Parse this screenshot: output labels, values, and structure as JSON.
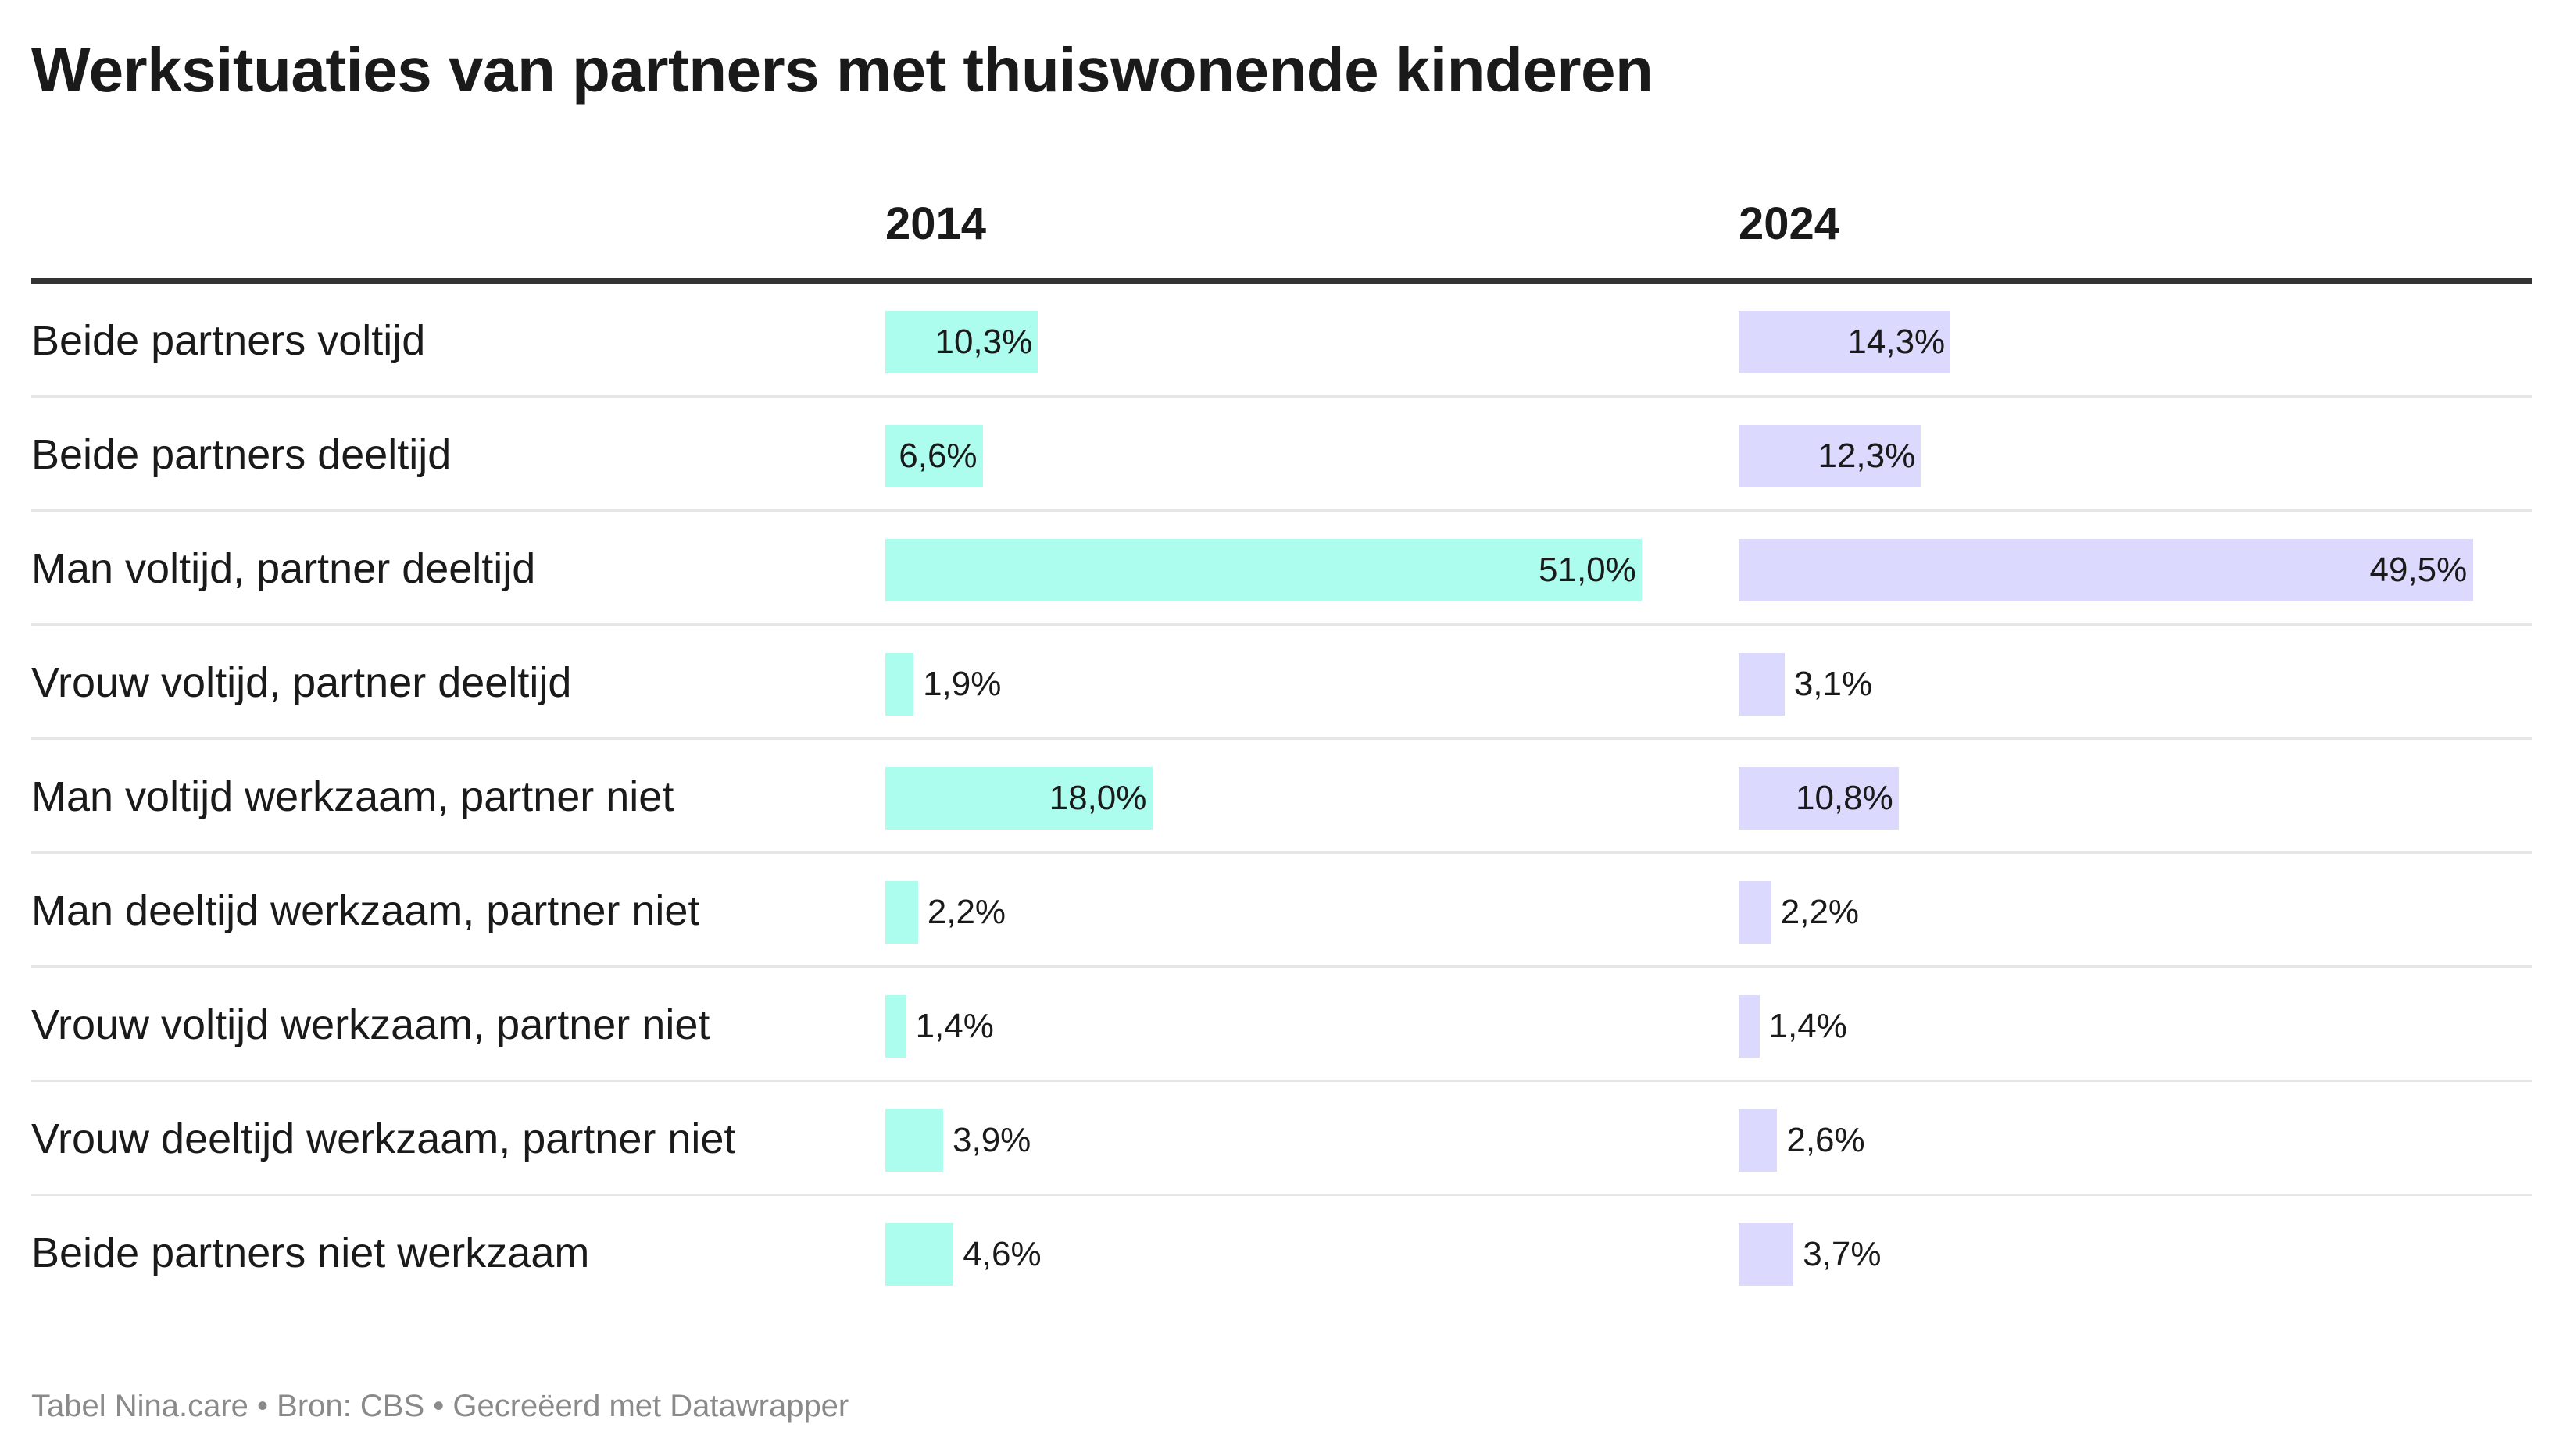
{
  "chart_data": {
    "type": "table",
    "title": "Werksituaties van partners met thuiswonende kinderen",
    "columns": [
      "2014",
      "2024"
    ],
    "categories": [
      "Beide partners voltijd",
      "Beide partners deeltijd",
      "Man voltijd, partner deeltijd",
      "Vrouw voltijd, partner deeltijd",
      "Man voltijd werkzaam, partner niet",
      "Man deeltijd werkzaam, partner niet",
      "Vrouw voltijd werkzaam, partner niet",
      "Vrouw deeltijd werkzaam, partner niet",
      "Beide partners niet werkzaam"
    ],
    "series": [
      {
        "name": "2014",
        "color": "#adfdef",
        "values": [
          10.3,
          6.6,
          51.0,
          1.9,
          18.0,
          2.2,
          1.4,
          3.9,
          4.6
        ],
        "labels": [
          "10,3%",
          "6,6%",
          "51,0%",
          "1,9%",
          "18,0%",
          "2,2%",
          "1,4%",
          "3,9%",
          "4,6%"
        ]
      },
      {
        "name": "2024",
        "color": "#dcd9ff",
        "values": [
          14.3,
          12.3,
          49.5,
          3.1,
          10.8,
          2.2,
          1.4,
          2.6,
          3.7
        ],
        "labels": [
          "14,3%",
          "12,3%",
          "49,5%",
          "3,1%",
          "10,8%",
          "2,2%",
          "1,4%",
          "2,6%",
          "3,7%"
        ]
      }
    ],
    "bar_scale_max": 51.0,
    "unit": "%"
  },
  "footer": "Tabel Nina.care • Bron: CBS • Gecreëerd met Datawrapper"
}
